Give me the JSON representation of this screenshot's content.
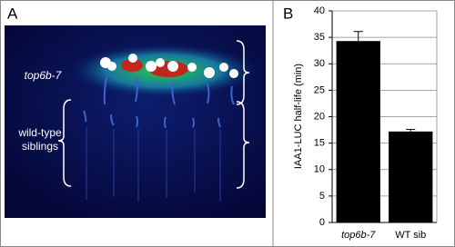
{
  "panel_a": {
    "label": "A",
    "mutant_label": "top6b-7",
    "wildtype_label": [
      "wild-type",
      "siblings"
    ]
  },
  "chart_data": {
    "type": "bar",
    "panel_label": "B",
    "y_label": "IAA1-LUC half-life (min)",
    "categories": [
      "top6b-7",
      "WT sib"
    ],
    "values": [
      34.3,
      17.2
    ],
    "errors": [
      1.8,
      0.4
    ],
    "color": "#000000",
    "ylim": [
      0,
      40
    ],
    "yticks": [
      0,
      5,
      10,
      15,
      20,
      25,
      30,
      35,
      40
    ],
    "grid": true
  }
}
